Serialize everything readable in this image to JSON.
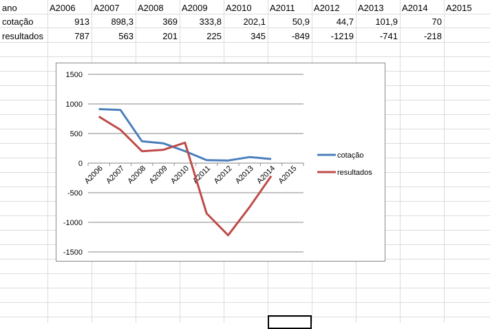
{
  "sheet": {
    "header_row": [
      "ano",
      "A2006",
      "A2007",
      "A2008",
      "A2009",
      "A2010",
      "A2011",
      "A2012",
      "A2013",
      "A2014",
      "A2015"
    ],
    "rows": [
      {
        "label": "cotação",
        "values": [
          "913",
          "898,3",
          "369",
          "333,8",
          "202,1",
          "50,9",
          "44,7",
          "101,9",
          "70",
          ""
        ]
      },
      {
        "label": "resultados",
        "values": [
          "787",
          "563",
          "201",
          "225",
          "345",
          "-849",
          "-1219",
          "-741",
          "-218",
          ""
        ]
      }
    ]
  },
  "chart_data": {
    "type": "line",
    "categories": [
      "A2006",
      "A2007",
      "A2008",
      "A2009",
      "A2010",
      "A2011",
      "A2012",
      "A2013",
      "A2014",
      "A2015"
    ],
    "series": [
      {
        "name": "cotação",
        "color": "#4a7ebb",
        "values": [
          913,
          898.3,
          369,
          333.8,
          202.1,
          50.9,
          44.7,
          101.9,
          70,
          null
        ]
      },
      {
        "name": "resultados",
        "color": "#be4b48",
        "values": [
          787,
          563,
          201,
          225,
          345,
          -849,
          -1219,
          -741,
          -218,
          null
        ]
      }
    ],
    "ylim": [
      -1500,
      1500
    ],
    "yticks": [
      "1500",
      "1000",
      "500",
      "0",
      "-500",
      "-1000",
      "-1500"
    ],
    "ytick_values": [
      1500,
      1000,
      500,
      0,
      -500,
      -1000,
      -1500
    ],
    "grid": true,
    "legend": "right"
  }
}
